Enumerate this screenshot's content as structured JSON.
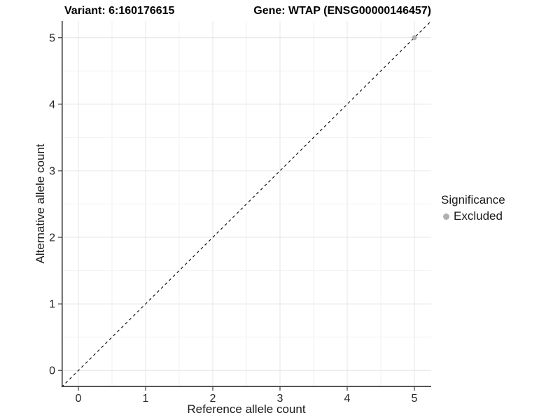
{
  "header": {
    "title_left": "Variant: 6:160176615",
    "title_right": "Gene: WTAP (ENSG00000146457)"
  },
  "axes": {
    "x_label": "Reference allele count",
    "y_label": "Alternative allele count"
  },
  "legend": {
    "title": "Significance",
    "entries": [
      {
        "label": "Excluded",
        "color": "#b0b0b0"
      }
    ]
  },
  "colors": {
    "background": "#ffffff",
    "grid_major": "#e4e4e4",
    "grid_minor": "#f2f2f2",
    "axis_line": "#3d3d3d",
    "tick_label": "#262626",
    "point_excluded": "#b0b0b0",
    "dashed_line": "#000000"
  },
  "chart_data": {
    "type": "scatter",
    "title": "Variant: 6:160176615   Gene: WTAP (ENSG00000146457)",
    "xlabel": "Reference allele count",
    "ylabel": "Alternative allele count",
    "xlim": [
      -0.25,
      5.25
    ],
    "ylim": [
      -0.25,
      5.25
    ],
    "x_ticks": [
      0,
      1,
      2,
      3,
      4,
      5
    ],
    "y_ticks": [
      0,
      1,
      2,
      3,
      4,
      5
    ],
    "x_minor": [
      0.5,
      1.5,
      2.5,
      3.5,
      4.5
    ],
    "y_minor": [
      0.5,
      1.5,
      2.5,
      3.5,
      4.5
    ],
    "grid": true,
    "legend_position": "right",
    "legend_title": "Significance",
    "series": [
      {
        "name": "Excluded",
        "color": "#b0b0b0",
        "points": [
          {
            "x": 5,
            "y": 5
          }
        ]
      }
    ],
    "reference_line": {
      "kind": "identity",
      "slope": 1,
      "intercept": 0,
      "style": "dashed",
      "color": "#000000"
    }
  }
}
